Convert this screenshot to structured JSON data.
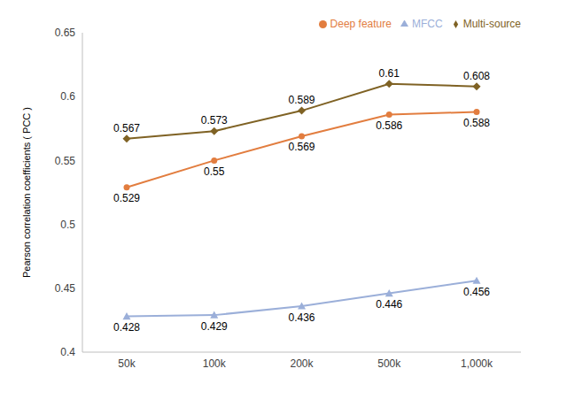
{
  "chart_data": {
    "type": "line",
    "y_label": "Pearson correlation coefficients ( PCC )",
    "categories": [
      "50k",
      "100k",
      "200k",
      "500k",
      "1,000k"
    ],
    "series": [
      {
        "name": "Multi-source",
        "color": "#7f6224",
        "marker": "diamond",
        "values": [
          0.567,
          0.573,
          0.589,
          0.61,
          0.608
        ]
      },
      {
        "name": "MFCC",
        "color": "#9bafd9",
        "marker": "triangle",
        "values": [
          0.428,
          0.429,
          0.436,
          0.446,
          0.456
        ]
      },
      {
        "name": "Deep feature",
        "color": "#e27d3f",
        "marker": "circle",
        "values": [
          0.529,
          0.55,
          0.569,
          0.586,
          0.588
        ]
      }
    ],
    "ylim": [
      0.4,
      0.65
    ],
    "yticks": [
      0.4,
      0.45,
      0.5,
      0.55,
      0.6,
      0.65
    ],
    "grid": false,
    "legend": "upper right",
    "data_labels": true
  }
}
